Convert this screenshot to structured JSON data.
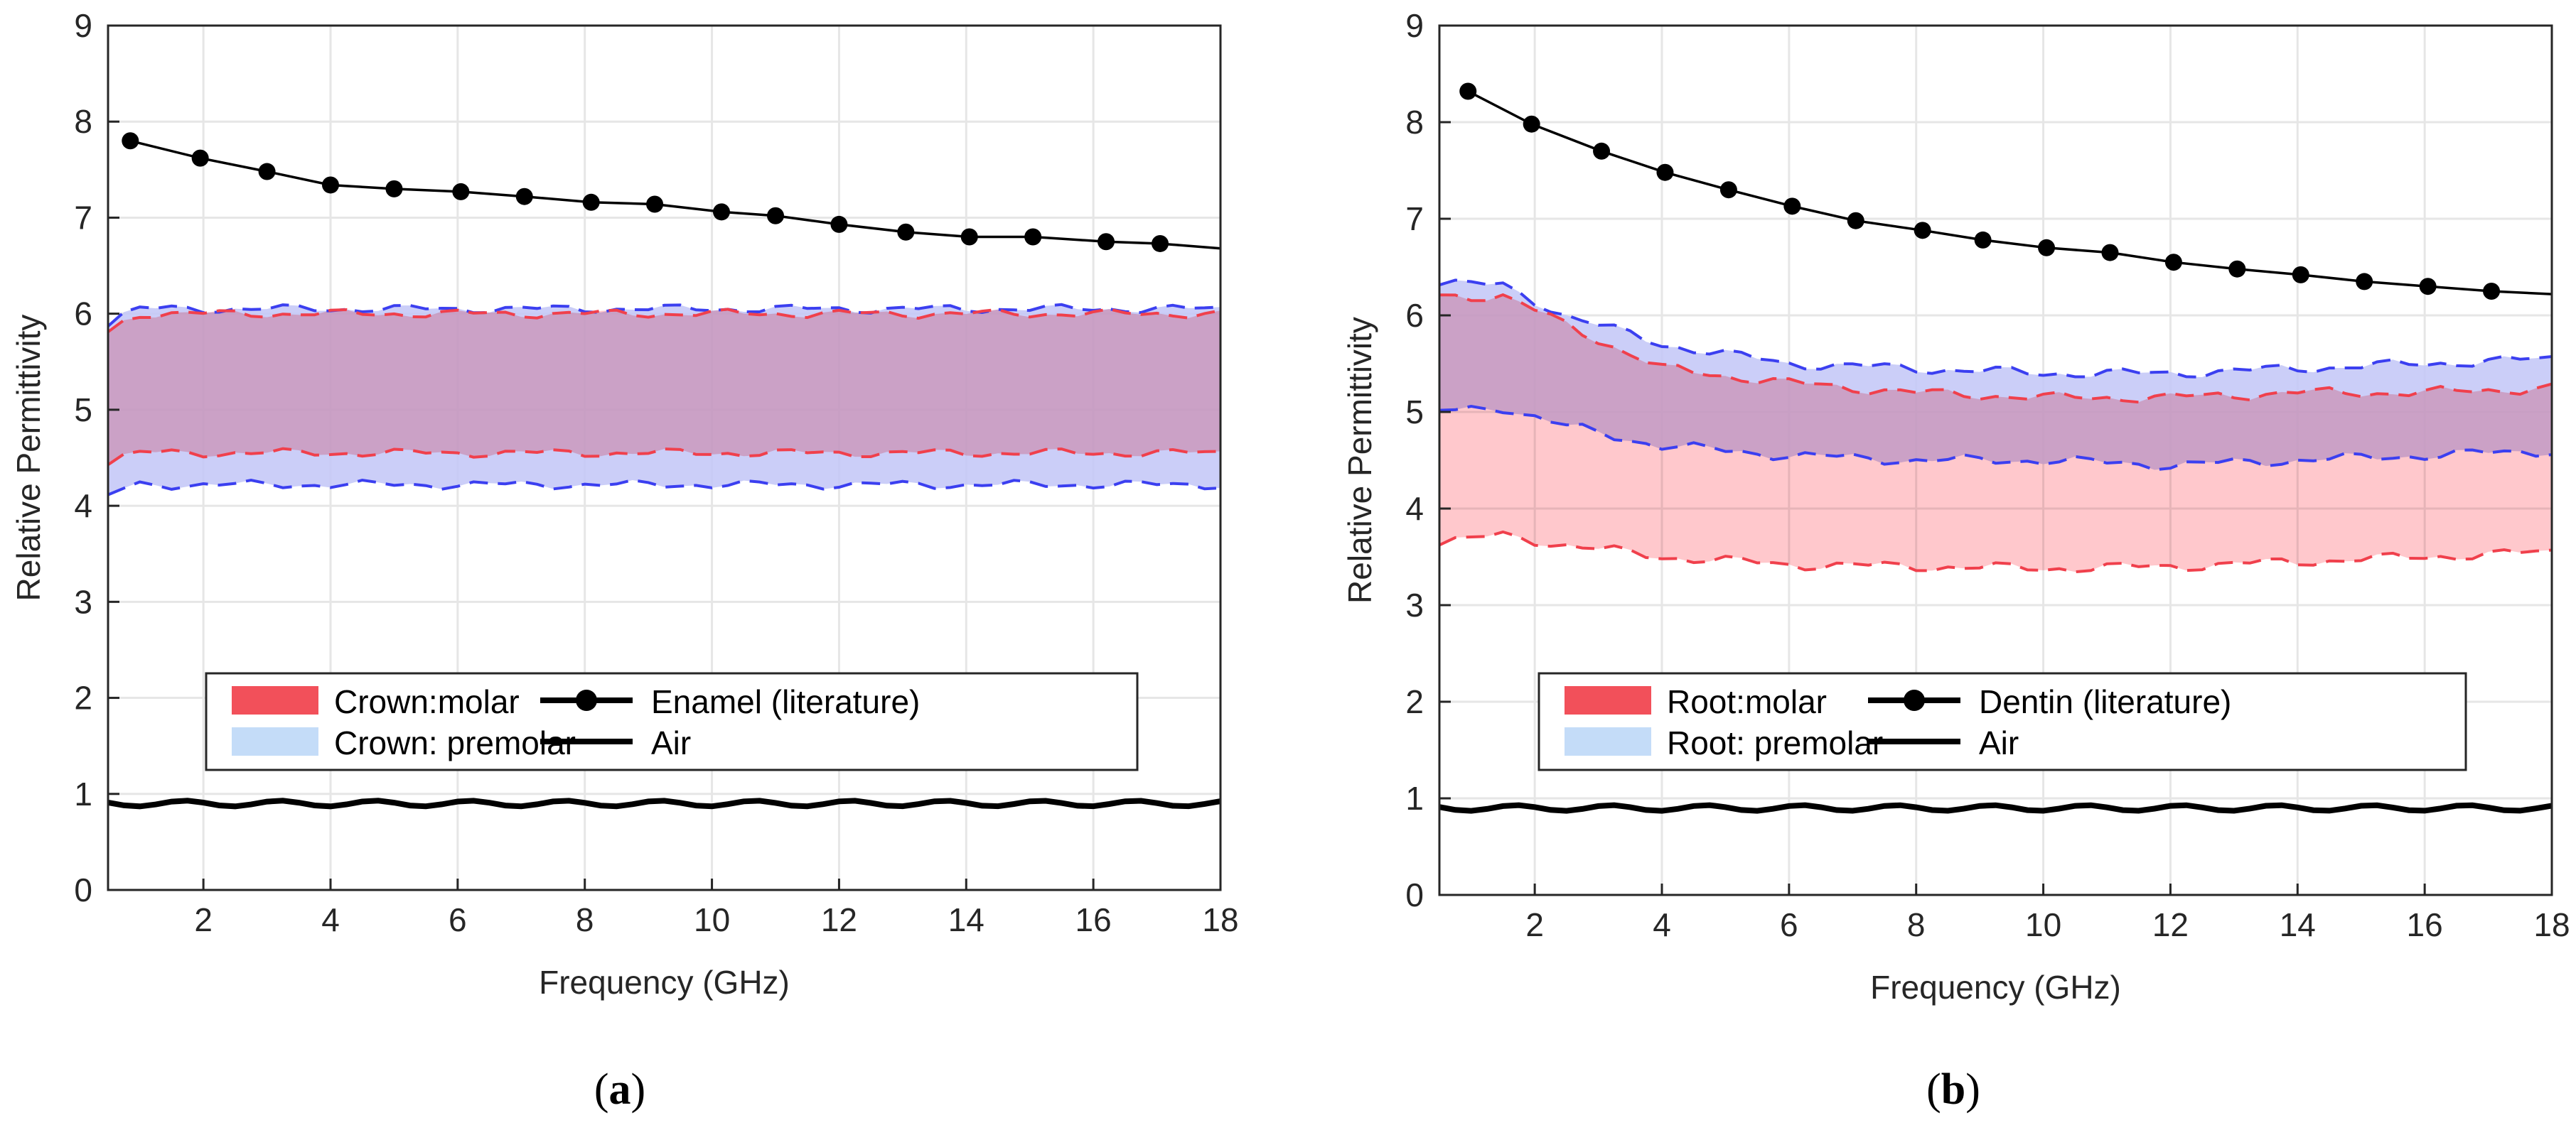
{
  "figure": {
    "captions": [
      {
        "pre": "(",
        "letter": "a",
        "post": ")"
      },
      {
        "pre": "(",
        "letter": "b",
        "post": ")"
      }
    ]
  },
  "colors": {
    "molar_fill": "#ffb3b8",
    "premolar_fill": "#c2c6f7",
    "overlap_fill": "#dcb4e0",
    "molar_line": "#f0404c",
    "premolar_line": "#3b3ff0",
    "literature_line": "#000000",
    "air_line": "#000000"
  },
  "chart_data": [
    {
      "type": "line",
      "panel": "a",
      "xlabel": "Frequency (GHz)",
      "ylabel": "Relative Permittivity",
      "xlim": [
        0.5,
        18
      ],
      "ylim": [
        0,
        9
      ],
      "xticks": [
        2,
        4,
        6,
        8,
        10,
        12,
        14,
        16,
        18
      ],
      "yticks": [
        0,
        1,
        2,
        3,
        4,
        5,
        6,
        7,
        8,
        9
      ],
      "legend_position": "lower-center",
      "series": [
        {
          "name": "Crown:molar",
          "kind": "band",
          "upper_mean": 6.0,
          "lower_mean": 4.55,
          "upper_start": 5.8,
          "lower_start": 4.45
        },
        {
          "name": "Crown: premolar",
          "kind": "band",
          "upper_mean": 6.05,
          "lower_mean": 4.22,
          "upper_start": 5.9,
          "lower_start": 4.1
        },
        {
          "name": "Enamel (literature)",
          "kind": "markers",
          "x": [
            0.85,
            1.95,
            3.0,
            4.0,
            5.0,
            6.05,
            7.05,
            8.1,
            9.1,
            10.15,
            11.0,
            12.0,
            13.05,
            14.05,
            15.05,
            16.2,
            17.05
          ],
          "y": [
            7.8,
            7.62,
            7.48,
            7.34,
            7.3,
            7.27,
            7.22,
            7.16,
            7.14,
            7.06,
            7.02,
            6.93,
            6.85,
            6.8,
            6.8,
            6.75,
            6.73
          ],
          "end": [
            18,
            6.68
          ]
        },
        {
          "name": "Air",
          "kind": "line",
          "mean": 0.9
        }
      ]
    },
    {
      "type": "line",
      "panel": "b",
      "xlabel": "Frequency (GHz)",
      "ylabel": "Relative Permittivity",
      "xlim": [
        0.5,
        18
      ],
      "ylim": [
        0,
        9
      ],
      "xticks": [
        2,
        4,
        6,
        8,
        10,
        12,
        14,
        16,
        18
      ],
      "yticks": [
        0,
        1,
        2,
        3,
        4,
        5,
        6,
        7,
        8,
        9
      ],
      "legend_position": "lower-center",
      "series": [
        {
          "name": "Root:molar",
          "kind": "band",
          "upper_points": [
            [
              0.5,
              6.2
            ],
            [
              1.5,
              6.2
            ],
            [
              2.5,
              5.9
            ],
            [
              4,
              5.45
            ],
            [
              6,
              5.3
            ],
            [
              8,
              5.2
            ],
            [
              10,
              5.15
            ],
            [
              12,
              5.15
            ],
            [
              14,
              5.2
            ],
            [
              16,
              5.2
            ],
            [
              18,
              5.25
            ]
          ],
          "lower_points": [
            [
              0.5,
              3.65
            ],
            [
              1.5,
              3.72
            ],
            [
              2.5,
              3.62
            ],
            [
              4,
              3.5
            ],
            [
              6,
              3.42
            ],
            [
              8,
              3.4
            ],
            [
              10,
              3.38
            ],
            [
              12,
              3.4
            ],
            [
              14,
              3.45
            ],
            [
              16,
              3.5
            ],
            [
              18,
              3.55
            ]
          ]
        },
        {
          "name": "Root: premolar",
          "kind": "band",
          "upper_points": [
            [
              0.5,
              6.35
            ],
            [
              1.5,
              6.3
            ],
            [
              2.5,
              6.0
            ],
            [
              4,
              5.7
            ],
            [
              6,
              5.5
            ],
            [
              8,
              5.45
            ],
            [
              10,
              5.4
            ],
            [
              12,
              5.4
            ],
            [
              14,
              5.45
            ],
            [
              16,
              5.5
            ],
            [
              18,
              5.55
            ]
          ],
          "lower_points": [
            [
              0.5,
              5.0
            ],
            [
              1.5,
              5.05
            ],
            [
              2.5,
              4.85
            ],
            [
              4,
              4.65
            ],
            [
              6,
              4.55
            ],
            [
              8,
              4.5
            ],
            [
              10,
              4.5
            ],
            [
              12,
              4.45
            ],
            [
              14,
              4.5
            ],
            [
              16,
              4.55
            ],
            [
              18,
              4.6
            ]
          ]
        },
        {
          "name": "Dentin (literature)",
          "kind": "markers",
          "x": [
            0.95,
            1.95,
            3.05,
            4.05,
            5.05,
            6.05,
            7.05,
            8.1,
            9.05,
            10.05,
            11.05,
            12.05,
            13.05,
            14.05,
            15.05,
            16.05,
            17.05
          ],
          "y": [
            8.32,
            7.98,
            7.7,
            7.48,
            7.3,
            7.13,
            6.98,
            6.88,
            6.78,
            6.7,
            6.65,
            6.55,
            6.48,
            6.42,
            6.35,
            6.3,
            6.25
          ],
          "end": [
            18,
            6.22
          ]
        },
        {
          "name": "Air",
          "kind": "line",
          "mean": 0.9
        }
      ]
    }
  ]
}
